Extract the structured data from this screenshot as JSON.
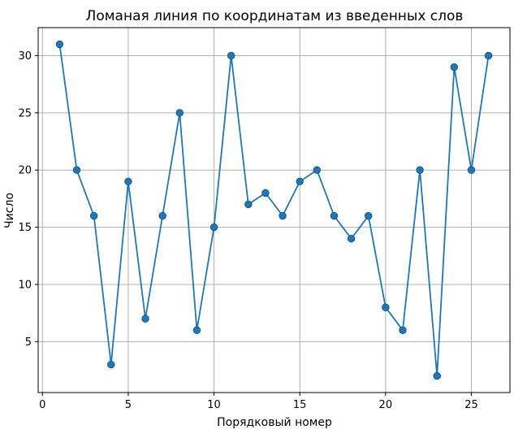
{
  "chart_data": {
    "type": "line",
    "title": "Ломаная линия по координатам из введенных слов",
    "xlabel": "Порядковый номер",
    "ylabel": "Число",
    "x": [
      1,
      2,
      3,
      4,
      5,
      6,
      7,
      8,
      9,
      10,
      11,
      12,
      13,
      14,
      15,
      16,
      17,
      18,
      19,
      20,
      21,
      22,
      23,
      24,
      25,
      26
    ],
    "series": [
      {
        "values": [
          31,
          20,
          16,
          3,
          19,
          7,
          16,
          25,
          6,
          15,
          30,
          17,
          18,
          16,
          19,
          20,
          16,
          14,
          16,
          8,
          6,
          20,
          2,
          29,
          20,
          30
        ],
        "color": "#1f77b4"
      }
    ],
    "xlim": [
      -0.25,
      27.25
    ],
    "ylim": [
      0.55,
      32.45
    ],
    "xticks": [
      0,
      5,
      10,
      15,
      20,
      25
    ],
    "yticks": [
      5,
      10,
      15,
      20,
      25,
      30
    ],
    "grid": true,
    "marker": "circle"
  }
}
